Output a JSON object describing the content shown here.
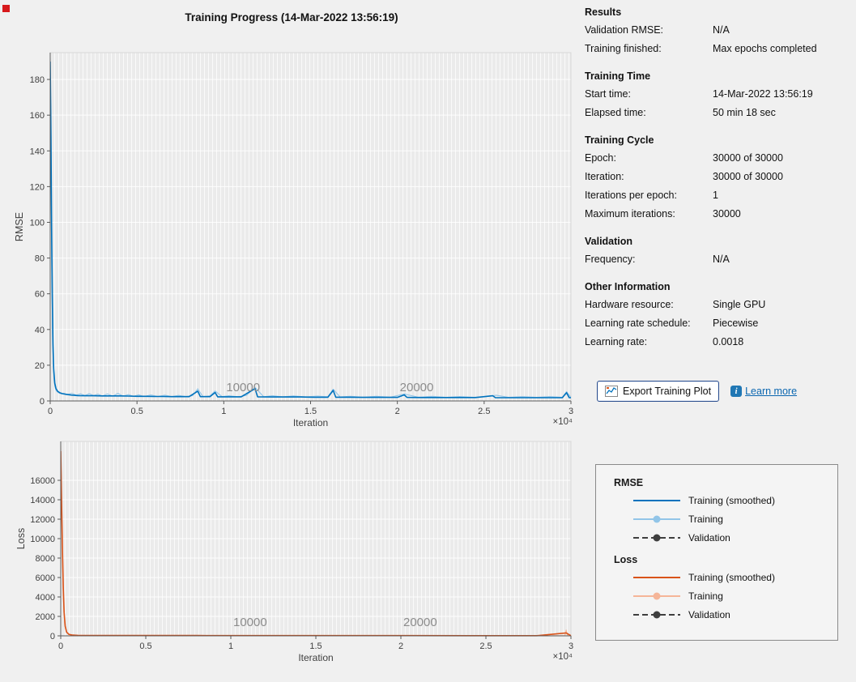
{
  "window": {
    "title": "Training Progress (14-Mar-2022 13:56:19)"
  },
  "panel": {
    "sections": [
      {
        "title": "Results",
        "rows": [
          {
            "label": "Validation RMSE:",
            "value": "N/A"
          },
          {
            "label": "Training finished:",
            "value": "Max epochs completed"
          }
        ]
      },
      {
        "title": "Training Time",
        "rows": [
          {
            "label": "Start time:",
            "value": "14-Mar-2022 13:56:19"
          },
          {
            "label": "Elapsed time:",
            "value": "50 min 18 sec"
          }
        ]
      },
      {
        "title": "Training Cycle",
        "rows": [
          {
            "label": "Epoch:",
            "value": "30000 of 30000"
          },
          {
            "label": "Iteration:",
            "value": "30000 of 30000"
          },
          {
            "label": "Iterations per epoch:",
            "value": "1"
          },
          {
            "label": "Maximum iterations:",
            "value": "30000"
          }
        ]
      },
      {
        "title": "Validation",
        "rows": [
          {
            "label": "Frequency:",
            "value": "N/A"
          }
        ]
      },
      {
        "title": "Other Information",
        "rows": [
          {
            "label": "Hardware resource:",
            "value": "Single GPU"
          },
          {
            "label": "Learning rate schedule:",
            "value": "Piecewise"
          },
          {
            "label": "Learning rate:",
            "value": "0.0018"
          }
        ]
      }
    ],
    "export_button": "Export Training Plot",
    "learn_more": "Learn more",
    "info_icon_glyph": "i"
  },
  "legend": {
    "groups": [
      {
        "title": "RMSE",
        "items": [
          {
            "label": "Training (smoothed)",
            "style": "solid",
            "color": "#0072bd"
          },
          {
            "label": "Training",
            "style": "marker",
            "color": "#92c5e8"
          },
          {
            "label": "Validation",
            "style": "dashed-marker",
            "color": "#3f3f3f"
          }
        ]
      },
      {
        "title": "Loss",
        "items": [
          {
            "label": "Training (smoothed)",
            "style": "solid",
            "color": "#d95319"
          },
          {
            "label": "Training",
            "style": "marker",
            "color": "#f5b598"
          },
          {
            "label": "Validation",
            "style": "dashed-marker",
            "color": "#3f3f3f"
          }
        ]
      }
    ]
  },
  "chart_data": [
    {
      "type": "line",
      "title": "",
      "ylabel": "RMSE",
      "xlabel": "Iteration",
      "x_multiplier_label": "×10⁴",
      "xlim": [
        0,
        30000
      ],
      "ylim": [
        0,
        195
      ],
      "yticks": [
        0,
        20,
        40,
        60,
        80,
        100,
        120,
        140,
        160,
        180
      ],
      "xticks": [
        0,
        5000,
        10000,
        15000,
        20000,
        25000,
        30000
      ],
      "xtick_labels": [
        "0",
        "0.5",
        "1",
        "1.5",
        "2",
        "2.5",
        "3"
      ],
      "annotations": [
        {
          "x": 10000,
          "label": "10000"
        },
        {
          "x": 20000,
          "label": "20000"
        }
      ],
      "series": [
        {
          "name": "Training",
          "color": "#92c5e8",
          "width": 1.1,
          "points": [
            [
              0,
              192
            ],
            [
              35,
              155
            ],
            [
              70,
              105
            ],
            [
              105,
              62
            ],
            [
              140,
              34
            ],
            [
              175,
              20
            ],
            [
              220,
              12
            ],
            [
              270,
              8
            ],
            [
              330,
              6
            ],
            [
              420,
              5
            ],
            [
              520,
              4.4
            ],
            [
              650,
              4
            ],
            [
              800,
              4.2
            ],
            [
              1000,
              3.6
            ],
            [
              1250,
              4.3
            ],
            [
              1500,
              3.2
            ],
            [
              1750,
              4
            ],
            [
              2000,
              3
            ],
            [
              2250,
              4.1
            ],
            [
              2500,
              3
            ],
            [
              2750,
              3.8
            ],
            [
              3000,
              2.8
            ],
            [
              3300,
              3.9
            ],
            [
              3600,
              2.7
            ],
            [
              3900,
              4.2
            ],
            [
              4200,
              2.7
            ],
            [
              4500,
              3.6
            ],
            [
              4800,
              2.6
            ],
            [
              5100,
              3.4
            ],
            [
              5400,
              2.5
            ],
            [
              5800,
              3.3
            ],
            [
              6200,
              2.5
            ],
            [
              6600,
              3.2
            ],
            [
              7000,
              2.4
            ],
            [
              7400,
              3.1
            ],
            [
              7800,
              2.5
            ],
            [
              8200,
              2.9
            ],
            [
              8500,
              6.8
            ],
            [
              8800,
              2.4
            ],
            [
              9200,
              2.8
            ],
            [
              9500,
              5.6
            ],
            [
              9900,
              2.4
            ],
            [
              10300,
              2.9
            ],
            [
              10800,
              2.3
            ],
            [
              11300,
              3.1
            ],
            [
              11800,
              7.6
            ],
            [
              12300,
              2.3
            ],
            [
              12800,
              2.9
            ],
            [
              13400,
              2.2
            ],
            [
              14000,
              2.8
            ],
            [
              14700,
              2.2
            ],
            [
              15400,
              2.7
            ],
            [
              16000,
              2.3
            ],
            [
              16300,
              6.6
            ],
            [
              16700,
              2.2
            ],
            [
              17300,
              2.6
            ],
            [
              18000,
              2.1
            ],
            [
              18800,
              2.6
            ],
            [
              19600,
              2.1
            ],
            [
              20400,
              3.9
            ],
            [
              21200,
              2.1
            ],
            [
              22000,
              2.6
            ],
            [
              22800,
              2.0
            ],
            [
              23600,
              2.5
            ],
            [
              24400,
              2.0
            ],
            [
              25200,
              2.5
            ],
            [
              25700,
              3.2
            ],
            [
              26400,
              2.0
            ],
            [
              27200,
              2.4
            ],
            [
              28000,
              2.0
            ],
            [
              28800,
              2.4
            ],
            [
              29500,
              2.0
            ],
            [
              29750,
              5.2
            ],
            [
              30000,
              2.0
            ]
          ]
        },
        {
          "name": "Training (smoothed)",
          "color": "#0072bd",
          "width": 1.6,
          "points": [
            [
              0,
              190
            ],
            [
              40,
              148
            ],
            [
              80,
              98
            ],
            [
              120,
              58
            ],
            [
              160,
              32
            ],
            [
              200,
              18
            ],
            [
              260,
              10
            ],
            [
              330,
              7
            ],
            [
              420,
              5.5
            ],
            [
              550,
              4.6
            ],
            [
              700,
              4.1
            ],
            [
              900,
              3.7
            ],
            [
              1200,
              3.3
            ],
            [
              1600,
              3.0
            ],
            [
              2000,
              2.9
            ],
            [
              2500,
              2.9
            ],
            [
              3000,
              2.8
            ],
            [
              3500,
              2.8
            ],
            [
              4000,
              2.8
            ],
            [
              4500,
              2.7
            ],
            [
              5000,
              2.6
            ],
            [
              5500,
              2.6
            ],
            [
              6000,
              2.5
            ],
            [
              6500,
              2.5
            ],
            [
              7000,
              2.4
            ],
            [
              7500,
              2.4
            ],
            [
              8000,
              2.4
            ],
            [
              8500,
              5.5
            ],
            [
              8650,
              2.4
            ],
            [
              9200,
              2.4
            ],
            [
              9500,
              4.7
            ],
            [
              9650,
              2.3
            ],
            [
              10300,
              2.3
            ],
            [
              11000,
              2.3
            ],
            [
              11800,
              6.9
            ],
            [
              11950,
              2.3
            ],
            [
              12800,
              2.2
            ],
            [
              13600,
              2.2
            ],
            [
              14400,
              2.2
            ],
            [
              15200,
              2.1
            ],
            [
              16000,
              2.1
            ],
            [
              16300,
              5.9
            ],
            [
              16450,
              2.1
            ],
            [
              17200,
              2.1
            ],
            [
              18000,
              2.0
            ],
            [
              19000,
              2.0
            ],
            [
              20000,
              2.0
            ],
            [
              20400,
              3.4
            ],
            [
              20550,
              2.0
            ],
            [
              21500,
              1.9
            ],
            [
              22500,
              1.9
            ],
            [
              23500,
              1.9
            ],
            [
              24500,
              1.9
            ],
            [
              25500,
              2.9
            ],
            [
              25650,
              1.8
            ],
            [
              26500,
              1.8
            ],
            [
              27500,
              1.8
            ],
            [
              28500,
              1.8
            ],
            [
              29500,
              1.8
            ],
            [
              29750,
              4.6
            ],
            [
              29900,
              1.8
            ],
            [
              30000,
              1.8
            ]
          ]
        }
      ]
    },
    {
      "type": "line",
      "title": "",
      "ylabel": "Loss",
      "xlabel": "Iteration",
      "x_multiplier_label": "×10⁴",
      "xlim": [
        0,
        30000
      ],
      "ylim": [
        0,
        20000
      ],
      "yticks": [
        0,
        2000,
        4000,
        6000,
        8000,
        10000,
        12000,
        14000,
        16000
      ],
      "xticks": [
        0,
        5000,
        10000,
        15000,
        20000,
        25000,
        30000
      ],
      "xtick_labels": [
        "0",
        "0.5",
        "1",
        "1.5",
        "2",
        "2.5",
        "3"
      ],
      "annotations": [
        {
          "x": 10000,
          "label": "10000"
        },
        {
          "x": 20000,
          "label": "20000"
        }
      ],
      "series": [
        {
          "name": "Training",
          "color": "#f5b598",
          "width": 1.1,
          "points": [
            [
              0,
              19600
            ],
            [
              45,
              15000
            ],
            [
              90,
              9500
            ],
            [
              135,
              5200
            ],
            [
              180,
              2600
            ],
            [
              240,
              1100
            ],
            [
              320,
              420
            ],
            [
              450,
              160
            ],
            [
              650,
              80
            ],
            [
              900,
              55
            ],
            [
              1500,
              45
            ],
            [
              3000,
              38
            ],
            [
              6000,
              32
            ],
            [
              10000,
              28
            ],
            [
              15000,
              25
            ],
            [
              20000,
              22
            ],
            [
              25000,
              20
            ],
            [
              29650,
              20
            ],
            [
              29720,
              600
            ],
            [
              29800,
              20
            ],
            [
              30000,
              18
            ]
          ]
        },
        {
          "name": "Training (smoothed)",
          "color": "#d95319",
          "width": 1.6,
          "points": [
            [
              0,
              19000
            ],
            [
              50,
              14000
            ],
            [
              100,
              8800
            ],
            [
              150,
              4800
            ],
            [
              200,
              2400
            ],
            [
              260,
              1000
            ],
            [
              350,
              380
            ],
            [
              480,
              150
            ],
            [
              700,
              75
            ],
            [
              1000,
              50
            ],
            [
              2000,
              42
            ],
            [
              4000,
              35
            ],
            [
              8000,
              30
            ],
            [
              12000,
              26
            ],
            [
              16000,
              24
            ],
            [
              20000,
              22
            ],
            [
              24000,
              20
            ],
            [
              28000,
              18
            ],
            [
              29720,
              300
            ],
            [
              30000,
              16
            ]
          ]
        }
      ]
    }
  ]
}
